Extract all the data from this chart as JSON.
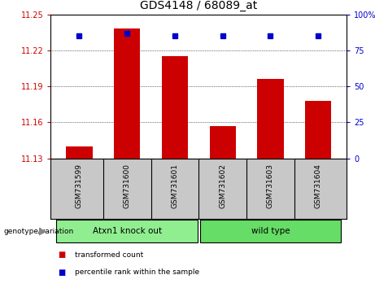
{
  "title": "GDS4148 / 68089_at",
  "samples": [
    "GSM731599",
    "GSM731600",
    "GSM731601",
    "GSM731602",
    "GSM731603",
    "GSM731604"
  ],
  "bar_values": [
    11.14,
    11.238,
    11.215,
    11.157,
    11.196,
    11.178
  ],
  "bar_base": 11.13,
  "percentile_values": [
    85,
    87,
    85,
    85,
    85,
    85
  ],
  "bar_color": "#cc0000",
  "dot_color": "#0000cc",
  "ylim_left": [
    11.13,
    11.25
  ],
  "ylim_right": [
    0,
    100
  ],
  "yticks_left": [
    11.13,
    11.16,
    11.19,
    11.22,
    11.25
  ],
  "yticks_right": [
    0,
    25,
    50,
    75,
    100
  ],
  "groups": [
    {
      "label": "Atxn1 knock out",
      "indices": [
        0,
        1,
        2
      ],
      "color": "#90ee90"
    },
    {
      "label": "wild type",
      "indices": [
        3,
        4,
        5
      ],
      "color": "#66dd66"
    }
  ],
  "group_label_prefix": "genotype/variation",
  "legend_items": [
    {
      "label": "transformed count",
      "color": "#cc0000"
    },
    {
      "label": "percentile rank within the sample",
      "color": "#0000cc"
    }
  ],
  "bg_color": "#ffffff",
  "plot_bg": "#ffffff",
  "tick_label_color_left": "#cc0000",
  "tick_label_color_right": "#0000cc",
  "xlabel_area_color": "#c8c8c8",
  "grid_lines": [
    11.16,
    11.19,
    11.22
  ]
}
